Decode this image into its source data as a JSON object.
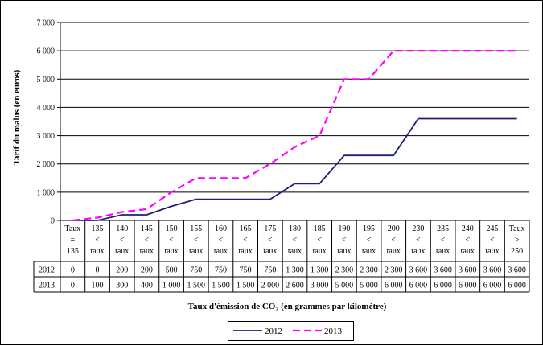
{
  "chart_data": {
    "type": "line",
    "ylabel": "Tarif du malus (en euros)",
    "xlabel_prefix": "Taux d'émission de CO",
    "xlabel_sub": "2",
    "xlabel_suffix": " (en grammes par kilomètre)",
    "ylim": [
      0,
      7000
    ],
    "yticks": [
      "0",
      "1 000",
      "2 000",
      "3 000",
      "4 000",
      "5 000",
      "6 000",
      "7 000"
    ],
    "categories": [
      [
        "Taux",
        "=",
        "135"
      ],
      [
        "135",
        "<",
        "taux"
      ],
      [
        "140",
        "<",
        "taux"
      ],
      [
        "145",
        "<",
        "taux"
      ],
      [
        "150",
        "<",
        "taux"
      ],
      [
        "155",
        "<",
        "taux"
      ],
      [
        "160",
        "<",
        "taux"
      ],
      [
        "165",
        "<",
        "taux"
      ],
      [
        "175",
        "<",
        "taux"
      ],
      [
        "180",
        "<",
        "taux"
      ],
      [
        "185",
        "<",
        "taux"
      ],
      [
        "190",
        "<",
        "taux"
      ],
      [
        "195",
        "<",
        "taux"
      ],
      [
        "200",
        "<",
        "taux"
      ],
      [
        "230",
        "<",
        "taux"
      ],
      [
        "235",
        "<",
        "taux"
      ],
      [
        "240",
        "<",
        "taux"
      ],
      [
        "245",
        "<",
        "taux"
      ],
      [
        "Taux",
        ">",
        "250"
      ]
    ],
    "grid": true,
    "legend_position": "bottom",
    "series": [
      {
        "name": "2012",
        "color": "#1f1f7a",
        "dash": "solid",
        "values": [
          0,
          0,
          200,
          200,
          500,
          750,
          750,
          750,
          750,
          1300,
          1300,
          2300,
          2300,
          2300,
          3600,
          3600,
          3600,
          3600,
          3600
        ],
        "labels": [
          "0",
          "0",
          "200",
          "200",
          "500",
          "750",
          "750",
          "750",
          "750",
          "1 300",
          "1 300",
          "2 300",
          "2 300",
          "2 300",
          "3 600",
          "3 600",
          "3 600",
          "3 600",
          "3 600"
        ]
      },
      {
        "name": "2013",
        "color": "#ff00ff",
        "dash": "dashed",
        "values": [
          0,
          100,
          300,
          400,
          1000,
          1500,
          1500,
          1500,
          2000,
          2600,
          3000,
          5000,
          5000,
          6000,
          6000,
          6000,
          6000,
          6000,
          6000
        ],
        "labels": [
          "0",
          "100",
          "300",
          "400",
          "1 000",
          "1 500",
          "1 500",
          "1 500",
          "2 000",
          "2 600",
          "3 000",
          "5 000",
          "5 000",
          "6 000",
          "6 000",
          "6 000",
          "6 000",
          "6 000",
          "6 000"
        ]
      }
    ]
  }
}
